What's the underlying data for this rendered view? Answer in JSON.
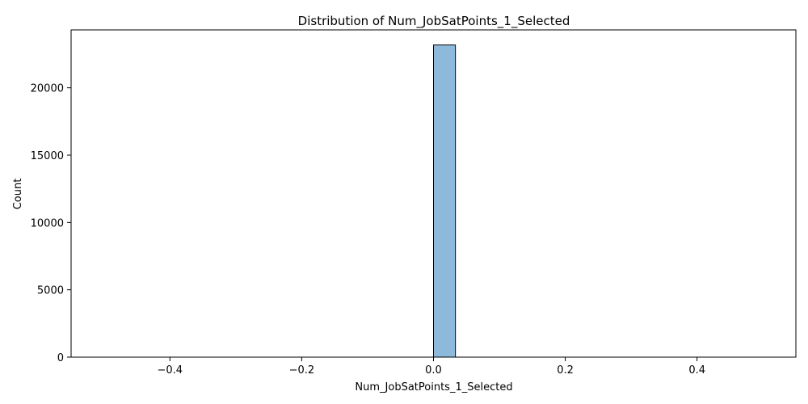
{
  "chart_data": {
    "type": "bar",
    "title": "Distribution of Num_JobSatPoints_1_Selected",
    "xlabel": "Num_JobSatPoints_1_Selected",
    "ylabel": "Count",
    "xlim": [
      -0.55,
      0.55
    ],
    "ylim": [
      0,
      24300
    ],
    "x_ticks": [
      -0.4,
      -0.2,
      0.0,
      0.2,
      0.4
    ],
    "x_tick_labels": [
      "−0.4",
      "−0.2",
      "0.0",
      "0.2",
      "0.4"
    ],
    "y_ticks": [
      0,
      5000,
      10000,
      15000,
      20000
    ],
    "y_tick_labels": [
      "0",
      "5000",
      "10000",
      "15000",
      "20000"
    ],
    "bins": [
      {
        "x0": 0.0,
        "x1": 0.0333,
        "count": 23180
      }
    ],
    "baseline_range": [
      -0.5,
      0.5
    ],
    "bar_color": "#8dbadb",
    "bar_edge_color": "#000000",
    "grid": false,
    "legend": "none"
  }
}
